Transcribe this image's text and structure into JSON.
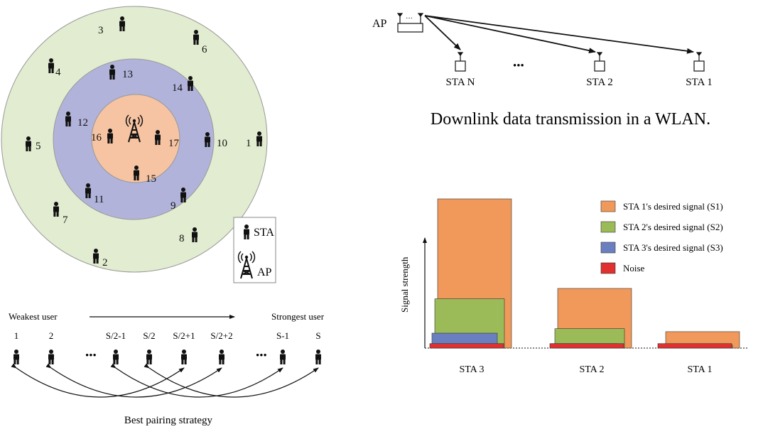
{
  "cell_diagram": {
    "user_numbers": [
      "3",
      "6",
      "4",
      "13",
      "14",
      "12",
      "16",
      "17",
      "10",
      "1",
      "5",
      "15",
      "11",
      "9",
      "7",
      "8",
      "2"
    ],
    "legend": {
      "sta_label": "STA",
      "ap_label": "AP"
    }
  },
  "pairing_diagram": {
    "weakest_label": "Weakest user",
    "strongest_label": "Strongest user",
    "user_labels": [
      "1",
      "2",
      "S/2-1",
      "S/2",
      "S/2+1",
      "S/2+2",
      "S-1",
      "S"
    ],
    "ellipsis": "•••",
    "caption": "Best pairing strategy"
  },
  "wlan_diagram": {
    "ap_label": "AP",
    "stations": [
      "STA N",
      "STA 2",
      "STA 1"
    ],
    "ellipsis": "•••",
    "caption": "Downlink data transmission in a WLAN."
  },
  "chart_data": {
    "type": "bar",
    "categories": [
      "STA 3",
      "STA 2",
      "STA 1"
    ],
    "ylabel": "Signal strength",
    "legend_position": "top-right",
    "series": [
      {
        "name": "STA 1's desired signal (S1)",
        "color": "#f0995a",
        "values": [
          100,
          40,
          11
        ]
      },
      {
        "name": "STA 2's desired signal (S2)",
        "color": "#9bbb59",
        "values": [
          33,
          13,
          2
        ]
      },
      {
        "name": "STA 3's desired signal (S3)",
        "color": "#6a7fc0",
        "values": [
          10,
          3,
          1
        ]
      },
      {
        "name": "Noise",
        "color": "#e03030",
        "values": [
          3,
          3,
          3
        ]
      }
    ]
  }
}
